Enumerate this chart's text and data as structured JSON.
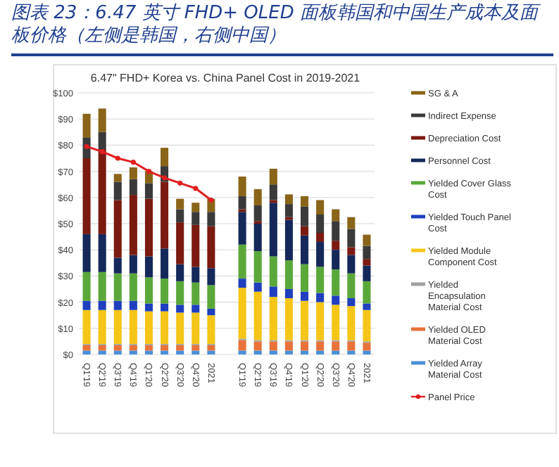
{
  "chart_data": {
    "type": "bar",
    "stacked": true,
    "title": "图表 23：6.47 英寸 FHD+ OLED 面板韩国和中国生产成本及面板价格（左侧是韩国，右侧中国）",
    "subtitle": "6.47\" FHD+ Korea vs. China  Panel Cost in 2019-2021",
    "categories": [
      "Q1'19",
      "Q2'19",
      "Q3'19",
      "Q4'19",
      "Q1'20",
      "Q2'20",
      "Q3'20",
      "Q4'20",
      "2021",
      null,
      "Q1'19",
      "Q2'19",
      "Q3'19",
      "Q4'19",
      "Q1'20",
      "Q2'20",
      "Q3'20",
      "Q4'20",
      "2021"
    ],
    "ylim": [
      0,
      100
    ],
    "yticks": [
      {
        "value": 0,
        "label": "$0"
      },
      {
        "value": 10,
        "label": "$10"
      },
      {
        "value": 20,
        "label": "$20"
      },
      {
        "value": 30,
        "label": "$30"
      },
      {
        "value": 40,
        "label": "$40"
      },
      {
        "value": 50,
        "label": "$50"
      },
      {
        "value": 60,
        "label": "$60"
      },
      {
        "value": 70,
        "label": "$70"
      },
      {
        "value": 80,
        "label": "$80"
      },
      {
        "value": 90,
        "label": "$90"
      },
      {
        "value": 100,
        "label": "$100"
      }
    ],
    "grid": "y",
    "legend": "right",
    "series": [
      {
        "name": "Yielded Array Material Cost",
        "color": "#4a90d9",
        "values": [
          1.5,
          1.5,
          1.5,
          1.5,
          1.5,
          1.5,
          1.5,
          1.5,
          1.5,
          null,
          1.5,
          1.5,
          1.5,
          1.5,
          1.5,
          1.5,
          1.5,
          1.5,
          1.5
        ]
      },
      {
        "name": "Yielded OLED Material Cost",
        "color": "#e8733a",
        "values": [
          2,
          2,
          2,
          2,
          2,
          2,
          2,
          2,
          2,
          null,
          4,
          3.5,
          3.5,
          3.5,
          3.5,
          3.5,
          3.5,
          3.5,
          3
        ]
      },
      {
        "name": "Yielded Encapsulation Material Cost",
        "color": "#a0a0a0",
        "values": [
          0.5,
          0.5,
          0.5,
          0.5,
          0.5,
          0.5,
          0.5,
          0.5,
          0.5,
          null,
          0.5,
          0.5,
          0.5,
          0.5,
          0.5,
          0.5,
          0.5,
          0.5,
          0.5
        ]
      },
      {
        "name": "Yielded Module Component Cost",
        "color": "#f5c518",
        "values": [
          13,
          13,
          13,
          13,
          12.5,
          12.5,
          12,
          12,
          11,
          null,
          19.5,
          18.5,
          16.5,
          16,
          15,
          14.5,
          13.5,
          13,
          12
        ]
      },
      {
        "name": "Yielded Touch Panel Cost",
        "color": "#1f3fbf",
        "values": [
          3.5,
          3.5,
          3.5,
          3.5,
          3,
          3,
          3,
          3,
          2.5,
          null,
          3.5,
          3.5,
          4,
          3.5,
          3.5,
          3.5,
          3.5,
          3,
          2.5
        ]
      },
      {
        "name": "Yielded Cover Glass Cost",
        "color": "#5aa83a",
        "values": [
          11,
          11,
          10.5,
          10.5,
          10,
          9.5,
          9,
          8.5,
          9,
          null,
          13,
          12,
          11.5,
          11,
          10.5,
          10,
          10,
          9.5,
          8.5
        ]
      },
      {
        "name": "Personnel Cost",
        "color": "#14285a",
        "values": [
          14.5,
          14.5,
          6,
          7,
          8,
          11.5,
          6.5,
          6,
          6.5,
          null,
          12.5,
          10.5,
          20.5,
          15.5,
          11,
          9.5,
          7.5,
          7,
          6
        ]
      },
      {
        "name": "Depreciation Cost",
        "color": "#7a1a10",
        "values": [
          29,
          32.5,
          22,
          23,
          22,
          25.5,
          16,
          16,
          16,
          null,
          1,
          1,
          1,
          1,
          3.5,
          3.5,
          3.5,
          3,
          2.5
        ]
      },
      {
        "name": "Indirect Expense",
        "color": "#3a3a3a",
        "values": [
          8,
          6.5,
          7,
          6,
          6,
          6,
          5,
          5,
          5.5,
          null,
          5,
          6,
          6,
          5,
          7.5,
          7,
          7.5,
          7,
          5
        ]
      },
      {
        "name": "SG & A",
        "color": "#8a6418",
        "values": [
          9,
          9,
          3,
          4.5,
          4.5,
          7,
          4,
          3.5,
          5,
          null,
          7.5,
          6.2,
          6,
          3.7,
          4,
          5.5,
          4.5,
          4.5,
          4.3
        ]
      },
      {
        "name": "Panel Price",
        "type": "line",
        "marker": "circle",
        "color": "#e02020",
        "values": [
          79.5,
          77.5,
          75,
          73.5,
          70,
          67.5,
          65.5,
          63.5,
          59,
          null,
          null,
          null,
          null,
          null,
          null,
          null,
          null,
          null,
          null
        ]
      }
    ]
  }
}
